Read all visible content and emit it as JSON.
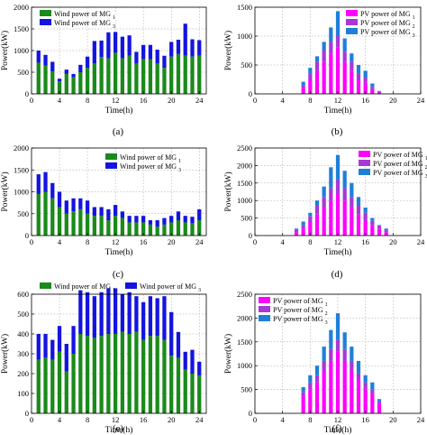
{
  "colors": {
    "wind_mg1": "#1a8a1a",
    "wind_mg3": "#1414e0",
    "pv_mg1": "#ff00ff",
    "pv_mg2": "#a838d6",
    "pv_mg3": "#1e7fd8",
    "axis": "#000000",
    "grid": "#9a9a9a"
  },
  "chart_data": [
    {
      "id": "a",
      "type": "bar",
      "stacked": true,
      "caption": "(a)",
      "xlabel": "Time(h)",
      "ylabel": "Power(kW)",
      "xlim": [
        0,
        25
      ],
      "ylim": [
        0,
        2000
      ],
      "xticks": [
        0,
        4,
        8,
        12,
        16,
        20,
        24
      ],
      "yticks": [
        0,
        500,
        1000,
        1500,
        2000
      ],
      "grid": true,
      "legend_position": "top-left",
      "x": [
        1,
        2,
        3,
        4,
        5,
        6,
        7,
        8,
        9,
        10,
        11,
        12,
        13,
        14,
        15,
        16,
        17,
        18,
        19,
        20,
        21,
        22,
        23,
        24
      ],
      "series": [
        {
          "name": "Wind power of MG",
          "name_subscript": "1",
          "color_key": "wind_mg1",
          "values": [
            720,
            650,
            520,
            290,
            460,
            380,
            500,
            600,
            700,
            850,
            820,
            950,
            820,
            880,
            700,
            800,
            800,
            700,
            600,
            860,
            920,
            880,
            860,
            880
          ]
        },
        {
          "name": "Wind power of MG",
          "name_subscript": "3",
          "color_key": "wind_mg3",
          "values": [
            280,
            250,
            220,
            60,
            100,
            80,
            170,
            260,
            520,
            380,
            600,
            480,
            500,
            470,
            270,
            330,
            330,
            320,
            280,
            340,
            330,
            740,
            400,
            360
          ]
        }
      ]
    },
    {
      "id": "b",
      "type": "bar",
      "stacked": true,
      "caption": "(b)",
      "xlabel": "Time(h)",
      "ylabel": "Power(kW)",
      "xlim": [
        0,
        24
      ],
      "ylim": [
        0,
        1500
      ],
      "xticks": [
        0,
        4,
        8,
        12,
        16,
        20,
        24
      ],
      "yticks": [
        0,
        500,
        1000,
        1500
      ],
      "grid": true,
      "legend_position": "top-right",
      "x": [
        7,
        8,
        9,
        10,
        11,
        12,
        13,
        14,
        15,
        16,
        17,
        18
      ],
      "series": [
        {
          "name": "PV power of MG",
          "name_subscript": "1",
          "color_key": "pv_mg1",
          "values": [
            100,
            250,
            400,
            550,
            700,
            800,
            550,
            400,
            250,
            200,
            80,
            25
          ]
        },
        {
          "name": "PV power of MG",
          "name_subscript": "2",
          "color_key": "pv_mg2",
          "values": [
            50,
            100,
            150,
            200,
            200,
            200,
            180,
            150,
            100,
            80,
            40,
            10
          ]
        },
        {
          "name": "PV power of MG",
          "name_subscript": "3",
          "color_key": "pv_mg3",
          "values": [
            60,
            100,
            100,
            150,
            250,
            430,
            230,
            150,
            150,
            120,
            60,
            15
          ]
        }
      ]
    },
    {
      "id": "c",
      "type": "bar",
      "stacked": true,
      "caption": "(c)",
      "xlabel": "Time(h)",
      "ylabel": "Power(kW)",
      "xlim": [
        0,
        25
      ],
      "ylim": [
        0,
        2000
      ],
      "xticks": [
        0,
        4,
        8,
        12,
        16,
        20,
        24
      ],
      "yticks": [
        0,
        500,
        1000,
        1500,
        2000
      ],
      "grid": true,
      "legend_position": "top-right",
      "x": [
        1,
        2,
        3,
        4,
        5,
        6,
        7,
        8,
        9,
        10,
        11,
        12,
        13,
        14,
        15,
        16,
        17,
        18,
        19,
        20,
        21,
        22,
        23,
        24
      ],
      "series": [
        {
          "name": "Wind power of MG",
          "name_subscript": "1",
          "color_key": "wind_mg1",
          "values": [
            950,
            1000,
            850,
            650,
            500,
            550,
            600,
            500,
            450,
            450,
            350,
            450,
            400,
            300,
            300,
            300,
            250,
            200,
            250,
            300,
            350,
            300,
            280,
            350
          ]
        },
        {
          "name": "Wind power of MG",
          "name_subscript": "3",
          "color_key": "wind_mg3",
          "values": [
            450,
            450,
            350,
            350,
            300,
            300,
            250,
            300,
            200,
            200,
            250,
            250,
            150,
            150,
            150,
            150,
            100,
            150,
            150,
            150,
            200,
            150,
            150,
            250
          ]
        }
      ]
    },
    {
      "id": "d",
      "type": "bar",
      "stacked": true,
      "caption": "(d)",
      "xlabel": "Time(h)",
      "ylabel": "Power(kW)",
      "xlim": [
        0,
        24
      ],
      "ylim": [
        0,
        2500
      ],
      "xticks": [
        0,
        4,
        8,
        12,
        16,
        20,
        24
      ],
      "yticks": [
        0,
        500,
        1000,
        1500,
        2000,
        2500
      ],
      "grid": true,
      "legend_position": "top-right",
      "x": [
        6,
        7,
        8,
        9,
        10,
        11,
        12,
        13,
        14,
        15,
        16,
        17,
        18,
        19
      ],
      "series": [
        {
          "name": "PV power of MG",
          "name_subscript": "1",
          "color_key": "pv_mg1",
          "values": [
            100,
            200,
            400,
            600,
            800,
            1000,
            1200,
            1000,
            800,
            600,
            450,
            300,
            200,
            100
          ]
        },
        {
          "name": "PV power of MG",
          "name_subscript": "2",
          "color_key": "pv_mg2",
          "values": [
            60,
            100,
            150,
            250,
            300,
            350,
            400,
            350,
            300,
            250,
            200,
            120,
            80,
            50
          ]
        },
        {
          "name": "PV power of MG",
          "name_subscript": "3",
          "color_key": "pv_mg3",
          "values": [
            40,
            100,
            100,
            150,
            300,
            600,
            700,
            500,
            400,
            250,
            150,
            80,
            20,
            50
          ]
        }
      ]
    },
    {
      "id": "e",
      "type": "bar",
      "stacked": true,
      "caption": "(e)",
      "xlabel": "Time(h)",
      "ylabel": "Power(kW)",
      "xlim": [
        0,
        25
      ],
      "ylim": [
        0,
        600
      ],
      "xticks": [
        0,
        4,
        8,
        12,
        16,
        20,
        24
      ],
      "yticks": [
        0,
        100,
        200,
        300,
        400,
        500,
        600
      ],
      "grid": true,
      "legend_position": "top",
      "x": [
        1,
        2,
        3,
        4,
        5,
        6,
        7,
        8,
        9,
        10,
        11,
        12,
        13,
        14,
        15,
        16,
        17,
        18,
        19,
        20,
        21,
        22,
        23,
        24
      ],
      "series": [
        {
          "name": "Wind power of MG",
          "name_subscript": "1",
          "color_key": "wind_mg1",
          "values": [
            270,
            280,
            270,
            310,
            210,
            300,
            400,
            390,
            380,
            390,
            400,
            400,
            410,
            400,
            410,
            370,
            390,
            390,
            370,
            290,
            280,
            220,
            200,
            190
          ]
        },
        {
          "name": "Wind power of MG",
          "name_subscript": "3",
          "color_key": "wind_mg3",
          "values": [
            130,
            120,
            100,
            130,
            140,
            140,
            220,
            220,
            210,
            220,
            230,
            230,
            190,
            210,
            180,
            190,
            200,
            190,
            220,
            220,
            130,
            90,
            120,
            70
          ]
        }
      ]
    },
    {
      "id": "f",
      "type": "bar",
      "stacked": true,
      "caption": "(f)",
      "xlabel": "Time(h)",
      "ylabel": "Power(kW)",
      "xlim": [
        0,
        24
      ],
      "ylim": [
        0,
        2500
      ],
      "xticks": [
        0,
        4,
        8,
        12,
        16,
        20,
        24
      ],
      "yticks": [
        0,
        500,
        1000,
        1500,
        2000,
        2500
      ],
      "grid": true,
      "legend_position": "top-left",
      "x": [
        7,
        8,
        9,
        10,
        11,
        12,
        13,
        14,
        15,
        16,
        17,
        18
      ],
      "series": [
        {
          "name": "PV power of MG",
          "name_subscript": "1",
          "color_key": "pv_mg1",
          "values": [
            350,
            500,
            650,
            900,
            1100,
            1300,
            1100,
            900,
            700,
            500,
            400,
            200
          ]
        },
        {
          "name": "PV power of MG",
          "name_subscript": "2",
          "color_key": "pv_mg2",
          "values": [
            100,
            150,
            150,
            200,
            250,
            250,
            250,
            200,
            150,
            150,
            100,
            50
          ]
        },
        {
          "name": "PV power of MG",
          "name_subscript": "3",
          "color_key": "pv_mg3",
          "values": [
            100,
            150,
            200,
            300,
            400,
            550,
            350,
            300,
            250,
            150,
            150,
            50
          ]
        }
      ]
    }
  ]
}
